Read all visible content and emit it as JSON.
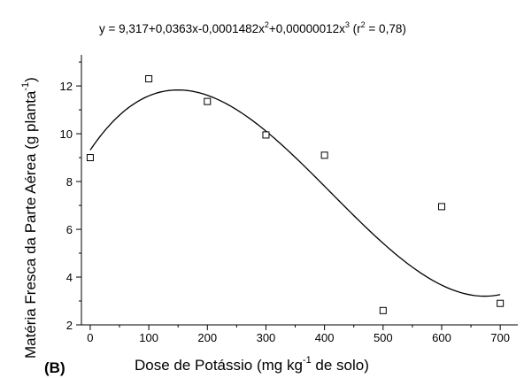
{
  "chart_data": {
    "type": "scatter",
    "panel_label": "(B)",
    "equation": {
      "lhs": "y = 9,317+0,0363x-0,0001482x",
      "sq_sup": "2",
      "mid": "+0,00000012x",
      "cube_sup": "3",
      "r_open": " (r",
      "r_sup": "2",
      "r_close": " = 0,78)"
    },
    "xlabel": {
      "pre": "Dose de Potássio (mg kg",
      "sup": "-1",
      "post": " de solo)"
    },
    "ylabel": {
      "pre": "Matéria Fresca da Parte Aérea (g planta",
      "sup": "-1",
      "post": ")"
    },
    "x_ticks": [
      0,
      100,
      200,
      300,
      400,
      500,
      600,
      700
    ],
    "y_ticks": [
      2,
      4,
      6,
      8,
      10,
      12
    ],
    "xlim": [
      -15,
      730
    ],
    "ylim": [
      2,
      13.3
    ],
    "points": [
      {
        "x": 0,
        "y": 9.0
      },
      {
        "x": 100,
        "y": 12.3
      },
      {
        "x": 200,
        "y": 11.35
      },
      {
        "x": 300,
        "y": 9.95
      },
      {
        "x": 400,
        "y": 9.1
      },
      {
        "x": 500,
        "y": 2.6
      },
      {
        "x": 600,
        "y": 6.95
      },
      {
        "x": 700,
        "y": 2.9
      }
    ],
    "fit": {
      "coefficients": [
        9.317,
        0.0363,
        -0.0001482,
        1.2e-07
      ],
      "x_range": [
        0,
        700
      ]
    },
    "grid": false,
    "legend": "none"
  }
}
